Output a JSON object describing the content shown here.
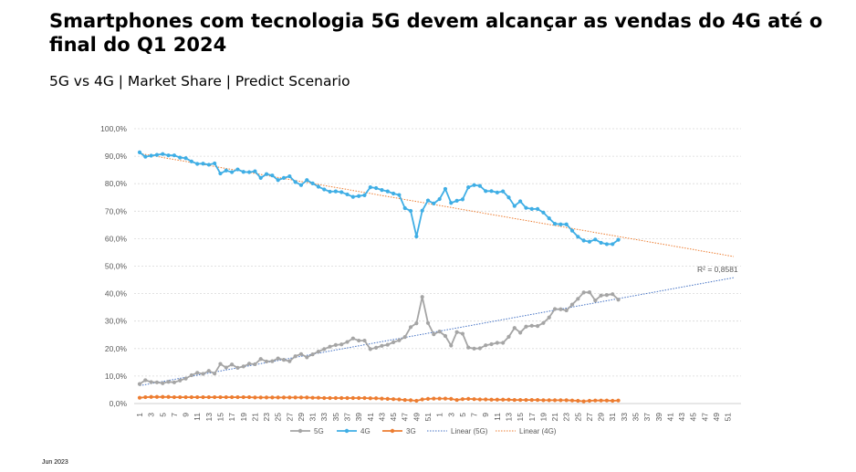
{
  "title": "Smartphones com tecnologia 5G devem alcançar as vendas do 4G até o final do Q1 2024",
  "subtitle": "5G vs 4G | Market Share | Predict Scenario",
  "footer": "Jun 2023",
  "chart_data": {
    "type": "line",
    "ylim": [
      0,
      100
    ],
    "yticks": [
      "0,0%",
      "10,0%",
      "20,0%",
      "30,0%",
      "40,0%",
      "50,0%",
      "60,0%",
      "70,0%",
      "80,0%",
      "90,0%",
      "100,0%"
    ],
    "x_tick_labels": [
      "1",
      "3",
      "5",
      "7",
      "9",
      "11",
      "13",
      "15",
      "17",
      "19",
      "21",
      "23",
      "25",
      "27",
      "29",
      "31",
      "33",
      "35",
      "37",
      "39",
      "41",
      "43",
      "45",
      "47",
      "49",
      "51",
      "1",
      "3",
      "5",
      "7",
      "9",
      "11",
      "13",
      "15",
      "17",
      "19",
      "21",
      "23",
      "25",
      "27",
      "29",
      "31",
      "33",
      "35",
      "37",
      "39",
      "41",
      "43",
      "45",
      "47",
      "49",
      "51"
    ],
    "grid": true,
    "legend_position": "bottom",
    "annotation": "R² = 0,8581",
    "series": [
      {
        "name": "5G",
        "color": "#A5A5A5",
        "values": [
          7.1,
          8.5,
          7.8,
          7.7,
          7.4,
          7.9,
          7.7,
          8.4,
          9.1,
          10.3,
          11.2,
          10.8,
          11.9,
          10.9,
          14.4,
          13.1,
          14.2,
          13.0,
          13.5,
          14.5,
          14.3,
          16.2,
          15.3,
          15.4,
          16.4,
          15.9,
          15.4,
          17.2,
          18.0,
          16.8,
          17.9,
          18.9,
          19.8,
          20.7,
          21.3,
          21.5,
          22.4,
          23.7,
          22.9,
          22.9,
          19.8,
          20.3,
          21.0,
          21.4,
          22.3,
          23.0,
          24.2,
          27.8,
          29.2,
          38.8,
          29.3,
          25.2,
          26.2,
          24.6,
          21.1,
          26.0,
          25.4,
          20.4,
          20.0,
          20.1,
          21.2,
          21.6,
          22.1,
          22.1,
          24.3,
          27.5,
          25.8,
          28.0,
          28.3,
          28.2,
          29.3,
          31.3,
          34.4,
          34.3,
          33.9,
          36.0,
          38.1,
          40.4,
          40.5,
          37.5,
          39.3,
          39.5,
          39.8,
          37.8
        ]
      },
      {
        "name": "4G",
        "color": "#3FAEE5",
        "values": [
          91.4,
          89.8,
          90.2,
          90.5,
          90.8,
          90.3,
          90.3,
          89.5,
          89.3,
          88.1,
          87.2,
          87.3,
          86.9,
          87.4,
          83.7,
          84.8,
          84.2,
          85.2,
          84.3,
          84.2,
          84.5,
          82.1,
          83.5,
          83.0,
          81.3,
          82.1,
          82.7,
          80.6,
          79.5,
          81.3,
          80.1,
          78.9,
          77.9,
          77.1,
          77.2,
          76.9,
          76.1,
          75.2,
          75.5,
          75.8,
          78.7,
          78.4,
          77.7,
          77.2,
          76.4,
          75.9,
          71.1,
          70.1,
          60.8,
          70.2,
          73.9,
          72.8,
          74.4,
          78.1,
          73.0,
          73.8,
          74.3,
          78.7,
          79.5,
          79.2,
          77.3,
          77.3,
          76.8,
          77.2,
          75.0,
          71.9,
          73.6,
          71.2,
          70.8,
          70.8,
          69.5,
          67.4,
          65.4,
          65.2,
          65.2,
          62.9,
          60.7,
          59.3,
          58.9,
          59.7,
          58.5,
          58.0,
          58.0,
          59.6
        ]
      },
      {
        "name": "3G",
        "color": "#ED7D31",
        "values": [
          2.1,
          2.3,
          2.4,
          2.4,
          2.4,
          2.4,
          2.3,
          2.3,
          2.3,
          2.3,
          2.3,
          2.3,
          2.3,
          2.3,
          2.3,
          2.3,
          2.3,
          2.3,
          2.3,
          2.3,
          2.2,
          2.2,
          2.2,
          2.2,
          2.2,
          2.2,
          2.2,
          2.2,
          2.2,
          2.2,
          2.1,
          2.1,
          2.0,
          2.0,
          2.0,
          2.0,
          2.0,
          2.0,
          2.0,
          2.0,
          1.9,
          1.9,
          1.8,
          1.7,
          1.6,
          1.5,
          1.3,
          1.2,
          1.0,
          1.5,
          1.7,
          1.8,
          1.8,
          1.8,
          1.7,
          1.3,
          1.6,
          1.7,
          1.6,
          1.5,
          1.5,
          1.4,
          1.4,
          1.4,
          1.4,
          1.3,
          1.3,
          1.3,
          1.3,
          1.3,
          1.2,
          1.2,
          1.2,
          1.2,
          1.2,
          1.1,
          1.0,
          0.8,
          1.0,
          1.1,
          1.1,
          1.1,
          1.0,
          1.1
        ]
      }
    ],
    "trendlines": [
      {
        "name": "Linear (5G)",
        "color": "#4472C4",
        "start": [
          1,
          6.5
        ],
        "end": [
          104,
          45.8
        ]
      },
      {
        "name": "Linear (4G)",
        "color": "#ED7D31",
        "start": [
          1,
          91.0
        ],
        "end": [
          104,
          53.5
        ]
      }
    ]
  }
}
